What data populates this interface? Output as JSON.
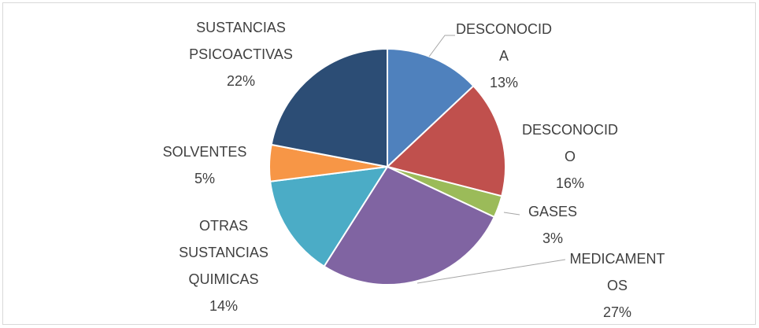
{
  "chart_data": {
    "type": "pie",
    "categories": [
      "DESCONOCIDA",
      "DESCONOCIDO",
      "GASES",
      "MEDICAMENTOS",
      "OTRAS SUSTANCIAS QUIMICAS",
      "SOLVENTES",
      "SUSTANCIAS PSICOACTIVAS"
    ],
    "values": [
      13,
      16,
      3,
      27,
      14,
      5,
      22
    ],
    "value_labels": [
      "13%",
      "16%",
      "3%",
      "27%",
      "14%",
      "5%",
      "22%"
    ],
    "colors": [
      "#4f81bd",
      "#c0504d",
      "#9bbb59",
      "#8064a2",
      "#4bacc6",
      "#f79646",
      "#2c4d75"
    ]
  }
}
